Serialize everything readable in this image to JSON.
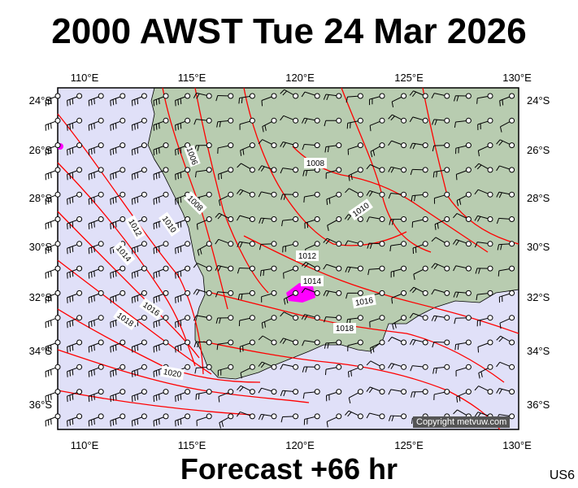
{
  "title": "2000 AWST Tue 24 Mar 2026",
  "footer": "Forecast +66 hr",
  "region_code": "US6",
  "copyright": "Copyright metvuw.com",
  "lon_labels": [
    "110°E",
    "115°E",
    "120°E",
    "125°E",
    "130°E"
  ],
  "lat_labels": [
    "24°S",
    "26°S",
    "28°S",
    "30°S",
    "32°S",
    "34°S",
    "36°S"
  ],
  "isobar_labels": [
    "1006",
    "1008",
    "1008",
    "1010",
    "1010",
    "1012",
    "1012",
    "1014",
    "1014",
    "1016",
    "1016",
    "1018",
    "1018",
    "1020"
  ],
  "colors": {
    "sea": "#e0e0f8",
    "land": "#b8ccb0",
    "isobar": "#ff0000",
    "rain": "#ff00ff",
    "frame": "#000000"
  }
}
